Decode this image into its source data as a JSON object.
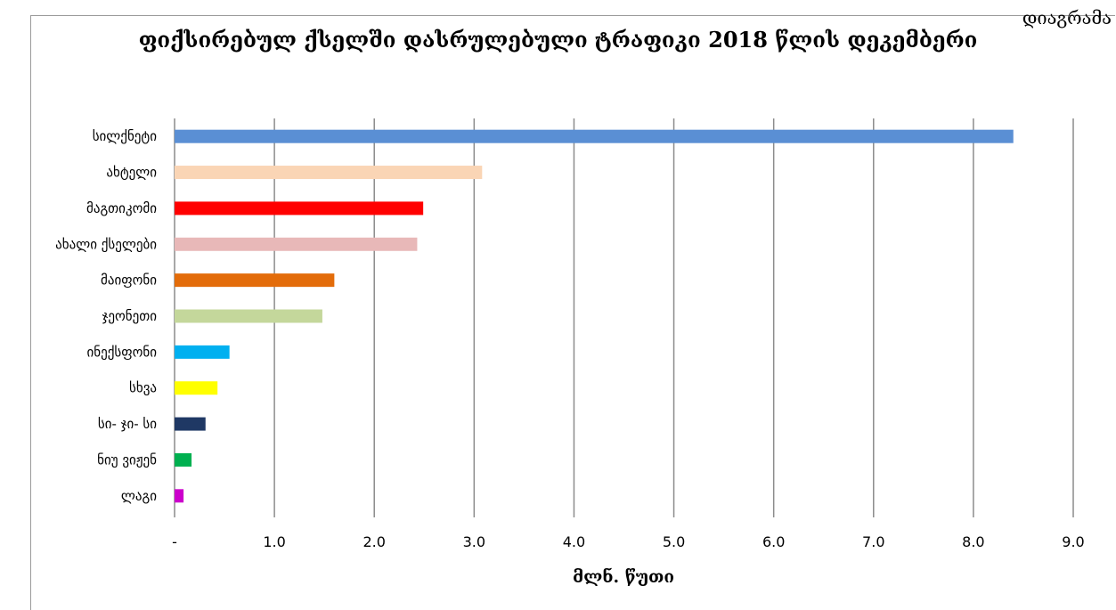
{
  "header": {
    "corner_text": "დიაგრამა"
  },
  "chart_data": {
    "type": "bar",
    "orientation": "horizontal",
    "title": "ფიქსირებულ ქსელში დასრულებული ტრაფიკი 2018 წლის დეკემბერი",
    "xlabel": "მლნ. წუთი",
    "ylabel": "",
    "xlim": [
      0,
      9
    ],
    "ticks": [
      "-",
      "1.0",
      "2.0",
      "3.0",
      "4.0",
      "5.0",
      "6.0",
      "7.0",
      "8.0",
      "9.0"
    ],
    "grid": true,
    "categories": [
      "სილქნეტი",
      "ახტელი",
      "მაგთიკომი",
      "ახალი ქსელები",
      "მაიფონი",
      "ჯეონეთი",
      "ინექსფონი",
      "სხვა",
      "სი- ჯი- სი",
      "ნიუ ვიჟენ",
      "ლაგი"
    ],
    "values": [
      8.4,
      3.08,
      2.49,
      2.43,
      1.6,
      1.48,
      0.55,
      0.43,
      0.31,
      0.17,
      0.09
    ],
    "colors": [
      "#5a8fd4",
      "#fad5b5",
      "#ff0000",
      "#e8b8b8",
      "#e36c0a",
      "#c4d79b",
      "#00b0f0",
      "#ffff00",
      "#1f3864",
      "#00b050",
      "#cc00cc"
    ]
  }
}
